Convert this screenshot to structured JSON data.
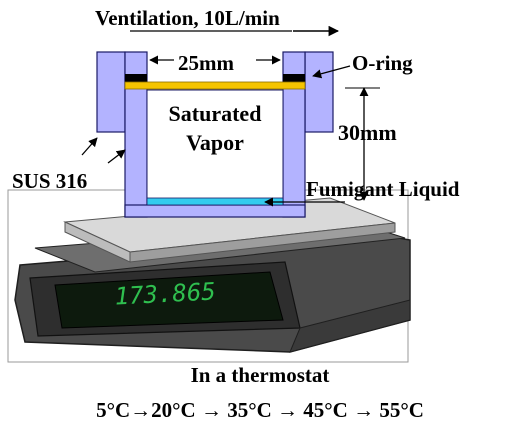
{
  "title": "Ventilation, 10L/min",
  "labels": {
    "width": "25mm",
    "oring": "O-ring",
    "vapor_line1": "Saturated",
    "vapor_line2": "Vapor",
    "height": "30mm",
    "material": "SUS 316",
    "liquid": "Fumigant Liquid",
    "display": "173.865",
    "thermostat": "In a thermostat"
  },
  "temperature_sequence": "5°C→20°C → 35°C → 45°C → 55°C",
  "colors": {
    "vessel": "#b3b3ff",
    "vessel_stroke": "#1a1a66",
    "oring_seal": "#000000",
    "yellow_lid": "#f5c400",
    "liquid": "#33ccee",
    "scale_dark": "#3d3d3d",
    "scale_top": "#d9d9d9",
    "display_digits": "#2fbf4f"
  }
}
